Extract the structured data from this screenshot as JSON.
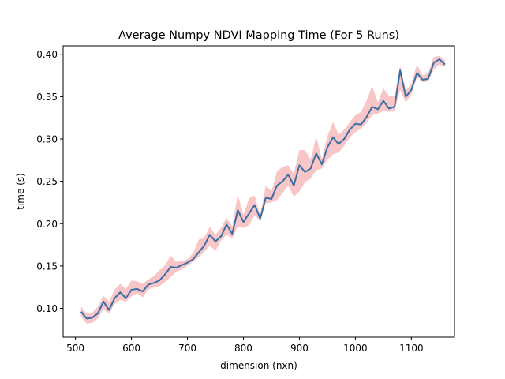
{
  "chart_data": {
    "type": "line",
    "title": "Average Numpy NDVI Mapping Time (For 5 Runs)",
    "xlabel": "dimension (nxn)",
    "ylabel": "time (s)",
    "xlim": [
      478,
      1177
    ],
    "ylim": [
      0.066,
      0.41
    ],
    "xticks": [
      500,
      600,
      700,
      800,
      900,
      1000,
      1100
    ],
    "yticks": [
      0.1,
      0.15,
      0.2,
      0.25,
      0.3,
      0.35,
      0.4
    ],
    "ytick_labels": [
      "0.10",
      "0.15",
      "0.20",
      "0.25",
      "0.30",
      "0.35",
      "0.40"
    ],
    "grid": false,
    "line_color": "#3a6ea5",
    "band_color": "#f08080",
    "series": [
      {
        "x": [
          510,
          520,
          530,
          540,
          550,
          560,
          570,
          580,
          590,
          600,
          610,
          620,
          630,
          640,
          650,
          660,
          670,
          680,
          690,
          700,
          710,
          720,
          730,
          740,
          750,
          760,
          770,
          780,
          790,
          800,
          810,
          820,
          830,
          840,
          850,
          860,
          870,
          880,
          890,
          900,
          910,
          920,
          930,
          940,
          950,
          960,
          970,
          980,
          990,
          1000,
          1010,
          1020,
          1030,
          1040,
          1050,
          1060,
          1070,
          1080,
          1090,
          1100,
          1110,
          1120,
          1130,
          1140,
          1150,
          1160
        ],
        "y": [
          0.096,
          0.088,
          0.089,
          0.094,
          0.108,
          0.098,
          0.112,
          0.119,
          0.112,
          0.122,
          0.123,
          0.12,
          0.128,
          0.13,
          0.133,
          0.14,
          0.149,
          0.148,
          0.151,
          0.154,
          0.158,
          0.166,
          0.174,
          0.187,
          0.179,
          0.185,
          0.199,
          0.188,
          0.216,
          0.202,
          0.212,
          0.222,
          0.206,
          0.231,
          0.229,
          0.245,
          0.25,
          0.258,
          0.245,
          0.269,
          0.261,
          0.265,
          0.283,
          0.27,
          0.29,
          0.302,
          0.294,
          0.3,
          0.311,
          0.318,
          0.317,
          0.326,
          0.338,
          0.335,
          0.345,
          0.336,
          0.338,
          0.381,
          0.35,
          0.358,
          0.378,
          0.37,
          0.371,
          0.39,
          0.394,
          0.388
        ],
        "lower": [
          0.09,
          0.082,
          0.083,
          0.088,
          0.099,
          0.094,
          0.105,
          0.11,
          0.108,
          0.114,
          0.118,
          0.113,
          0.122,
          0.125,
          0.126,
          0.131,
          0.137,
          0.143,
          0.146,
          0.15,
          0.155,
          0.16,
          0.167,
          0.174,
          0.168,
          0.18,
          0.187,
          0.183,
          0.197,
          0.195,
          0.198,
          0.21,
          0.203,
          0.224,
          0.225,
          0.228,
          0.236,
          0.245,
          0.232,
          0.238,
          0.249,
          0.253,
          0.263,
          0.265,
          0.275,
          0.282,
          0.284,
          0.292,
          0.302,
          0.308,
          0.312,
          0.319,
          0.328,
          0.33,
          0.333,
          0.332,
          0.334,
          0.358,
          0.343,
          0.353,
          0.373,
          0.367,
          0.368,
          0.382,
          0.388,
          0.385
        ],
        "upper": [
          0.102,
          0.094,
          0.095,
          0.102,
          0.115,
          0.108,
          0.122,
          0.129,
          0.123,
          0.133,
          0.132,
          0.129,
          0.134,
          0.138,
          0.145,
          0.151,
          0.162,
          0.155,
          0.156,
          0.158,
          0.165,
          0.181,
          0.184,
          0.196,
          0.187,
          0.195,
          0.207,
          0.197,
          0.235,
          0.21,
          0.23,
          0.233,
          0.21,
          0.245,
          0.238,
          0.262,
          0.267,
          0.269,
          0.259,
          0.287,
          0.287,
          0.275,
          0.303,
          0.276,
          0.303,
          0.32,
          0.305,
          0.311,
          0.32,
          0.328,
          0.332,
          0.345,
          0.363,
          0.343,
          0.36,
          0.351,
          0.35,
          0.386,
          0.357,
          0.365,
          0.388,
          0.375,
          0.378,
          0.397,
          0.398,
          0.393
        ]
      }
    ]
  }
}
